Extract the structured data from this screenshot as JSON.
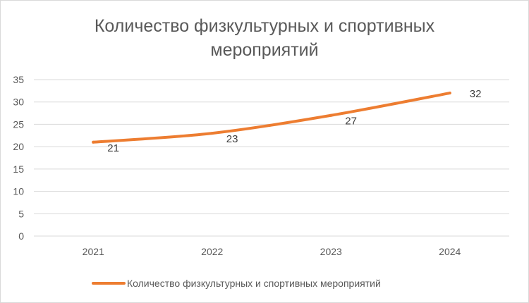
{
  "chart_data": {
    "type": "line",
    "title": "Количество физкультурных и спортивных мероприятий",
    "categories": [
      "2021",
      "2022",
      "2023",
      "2024"
    ],
    "series": [
      {
        "name": "Количество физкультурных и спортивных мероприятий",
        "values": [
          21,
          23,
          27,
          32
        ],
        "color": "#ed7d31"
      }
    ],
    "data_labels": [
      "21",
      "23",
      "27",
      "32"
    ],
    "yticks": [
      0,
      5,
      10,
      15,
      20,
      25,
      30,
      35
    ],
    "ylim": [
      0,
      35
    ],
    "grid": true,
    "gridColor": "#d9d9d9",
    "legend": "bottom"
  }
}
